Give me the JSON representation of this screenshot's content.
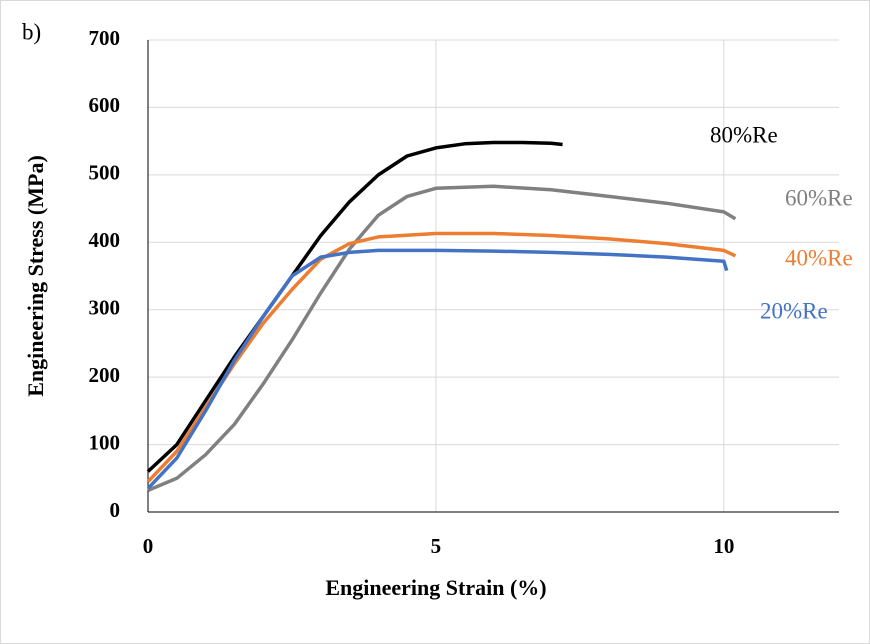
{
  "chart_data": {
    "type": "line",
    "panel_label": "b)",
    "x_label": "Engineering Strain (%)",
    "y_label": "Engineering Stress (MPa)",
    "xlim": [
      0,
      12
    ],
    "xticks": [
      0,
      5,
      10
    ],
    "ylim": [
      0,
      700
    ],
    "yticks": [
      0,
      100,
      200,
      300,
      400,
      500,
      600,
      700
    ],
    "grid": true,
    "series": [
      {
        "name": "80%Re",
        "color": "#000000",
        "x": [
          0,
          0.5,
          1,
          1.5,
          2,
          2.5,
          3,
          3.5,
          4,
          4.5,
          5,
          5.5,
          6,
          6.5,
          7,
          7.2
        ],
        "values": [
          60,
          100,
          165,
          230,
          290,
          350,
          410,
          460,
          500,
          528,
          540,
          546,
          548,
          548,
          547,
          545
        ]
      },
      {
        "name": "60%Re",
        "color": "#808080",
        "x": [
          0,
          0.5,
          1,
          1.5,
          2,
          2.5,
          3,
          3.5,
          4,
          4.5,
          5,
          6,
          7,
          8,
          9,
          10,
          10.2
        ],
        "values": [
          32,
          50,
          85,
          130,
          190,
          255,
          325,
          390,
          440,
          468,
          480,
          483,
          478,
          468,
          458,
          445,
          435
        ]
      },
      {
        "name": "40%Re",
        "color": "#ed7d31",
        "x": [
          0,
          0.5,
          1,
          1.5,
          2,
          2.5,
          3,
          3.5,
          4,
          5,
          6,
          7,
          8,
          9,
          10,
          10.2
        ],
        "values": [
          45,
          90,
          155,
          220,
          280,
          330,
          375,
          398,
          408,
          413,
          413,
          410,
          405,
          398,
          388,
          380
        ]
      },
      {
        "name": "20%Re",
        "color": "#4472c4",
        "x": [
          0,
          0.5,
          1,
          1.5,
          2,
          2.5,
          3,
          3.5,
          4,
          5,
          6,
          7,
          8,
          9,
          10,
          10.05
        ],
        "values": [
          35,
          80,
          150,
          225,
          290,
          350,
          378,
          385,
          388,
          388,
          387,
          385,
          382,
          378,
          372,
          358
        ]
      }
    ]
  }
}
